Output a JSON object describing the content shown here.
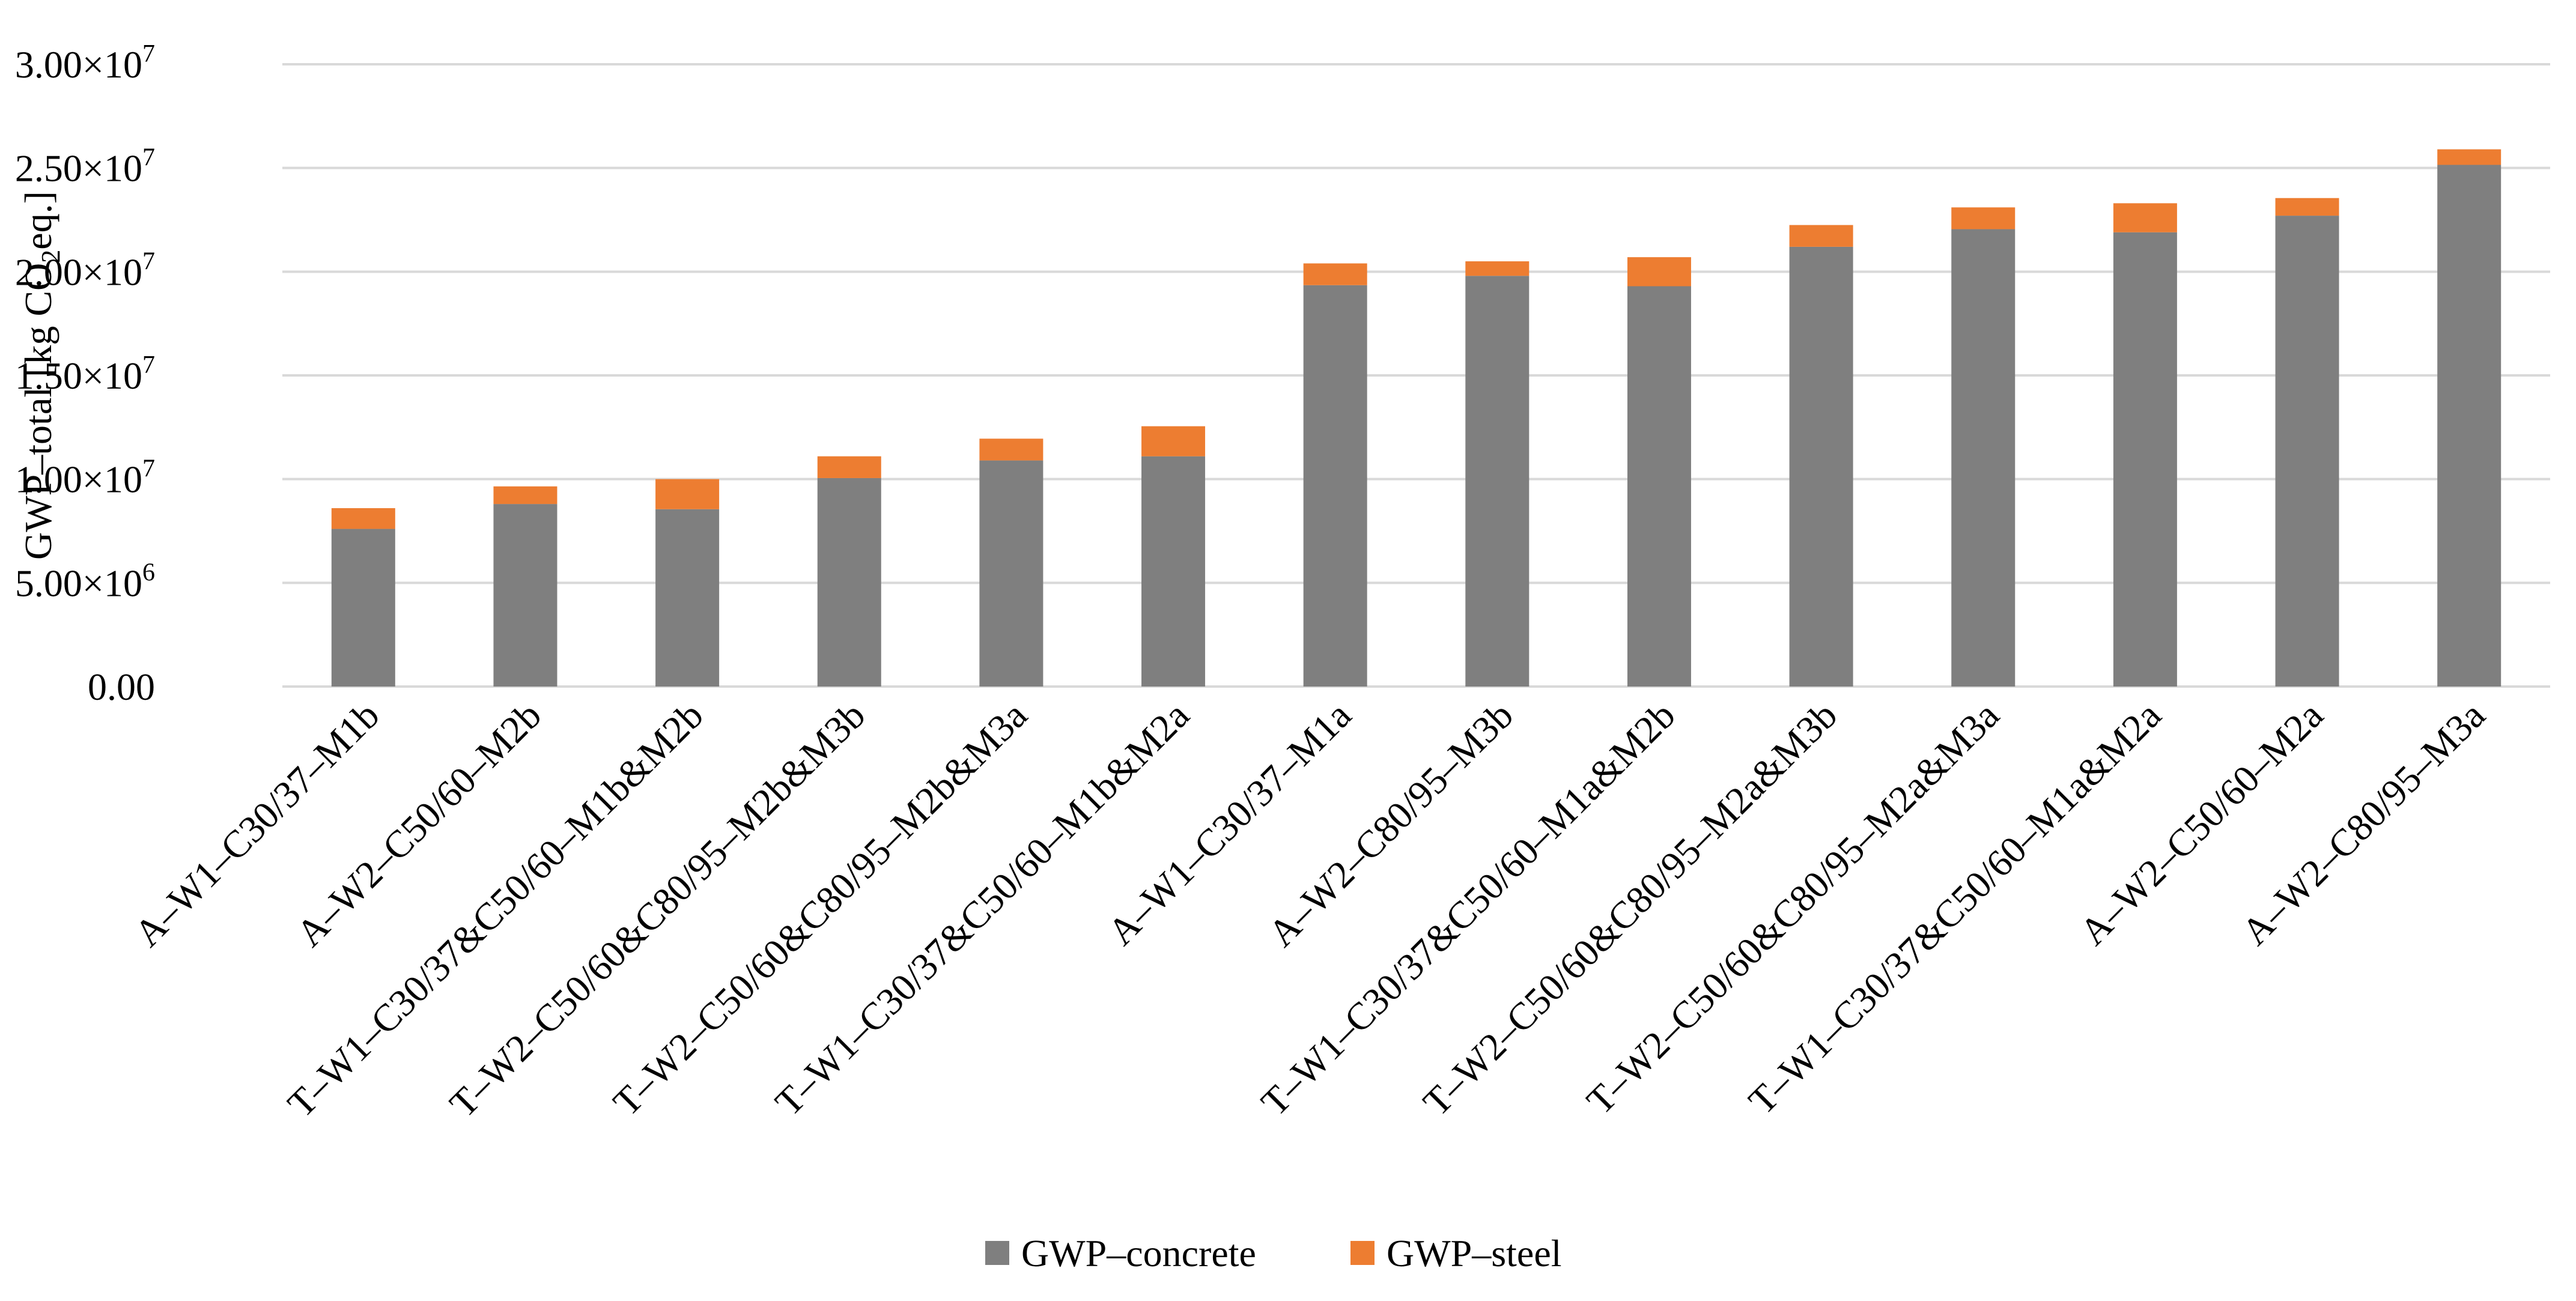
{
  "chart_data": {
    "type": "bar",
    "stacked": true,
    "ylabel": "GWP–total [kg CO₂eq.]",
    "ylim": [
      0,
      30000000
    ],
    "yticks": [
      {
        "value": 0,
        "mantissa": "0.00",
        "exponent": ""
      },
      {
        "value": 5000000,
        "mantissa": "5.00×10",
        "exponent": "6"
      },
      {
        "value": 10000000,
        "mantissa": "1.00×10",
        "exponent": "7"
      },
      {
        "value": 15000000,
        "mantissa": "1.50×10",
        "exponent": "7"
      },
      {
        "value": 20000000,
        "mantissa": "2.00×10",
        "exponent": "7"
      },
      {
        "value": 25000000,
        "mantissa": "2.50×10",
        "exponent": "7"
      },
      {
        "value": 30000000,
        "mantissa": "3.00×10",
        "exponent": "7"
      }
    ],
    "grid": true,
    "legend_position": "bottom",
    "categories": [
      "A–W1–C30/37–M1b",
      "A–W2–C50/60–M2b",
      "T–W1–C30/37&C50/60–M1b&M2b",
      "T–W2–C50/60&C80/95–M2b&M3b",
      "T–W2–C50/60&C80/95–M2b&M3a",
      "T–W1–C30/37&C50/60–M1b&M2a",
      "A–W1–C30/37–M1a",
      "A–W2–C80/95–M3b",
      "T–W1–C30/37&C50/60–M1a&M2b",
      "T–W2–C50/60&C80/95–M2a&M3b",
      "T–W2–C50/60&C80/95–M2a&M3a",
      "T–W1–C30/37&C50/60–M1a&M2a",
      "A–W2–C50/60–M2a",
      "A–W2–C80/95–M3a"
    ],
    "series": [
      {
        "name": "GWP–concrete",
        "color": "#7f7f7f",
        "values": [
          7600000,
          8800000,
          8550000,
          10050000,
          10900000,
          11100000,
          19350000,
          19800000,
          19300000,
          21200000,
          22050000,
          21900000,
          22700000,
          25150000
        ]
      },
      {
        "name": "GWP–steel",
        "color": "#ed7d31",
        "values": [
          1000000,
          850000,
          1450000,
          1050000,
          1050000,
          1450000,
          1050000,
          700000,
          1400000,
          1050000,
          1050000,
          1400000,
          850000,
          750000
        ]
      }
    ]
  }
}
